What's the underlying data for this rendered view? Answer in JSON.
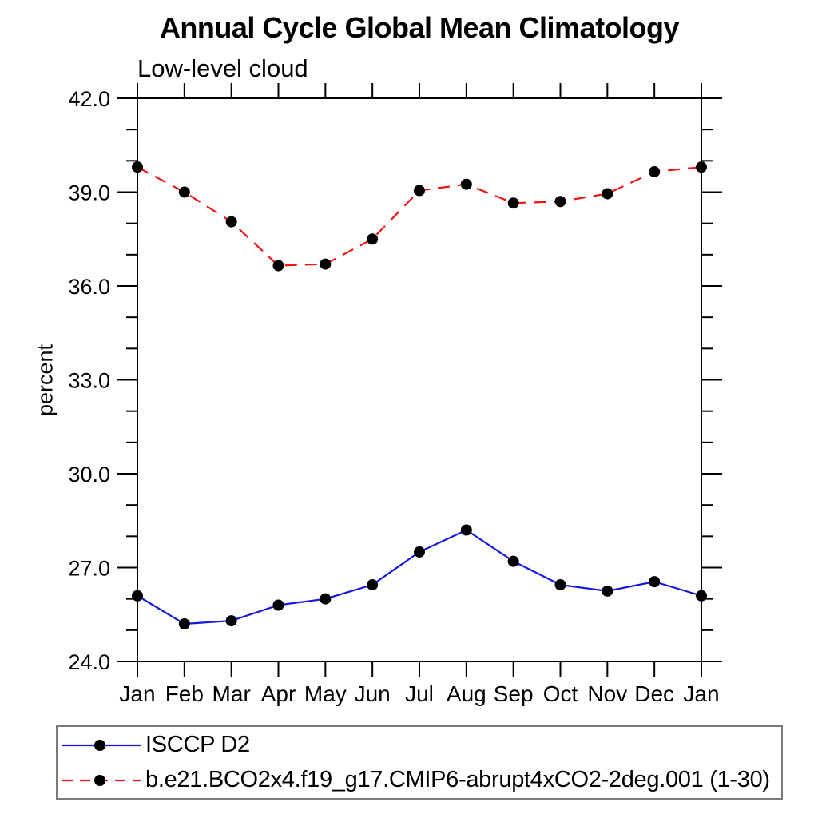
{
  "header": {
    "title": "Annual Cycle Global Mean Climatology",
    "subtitle": "Low-level cloud"
  },
  "colors": {
    "axis": "#000000",
    "marker": "#000000",
    "series_blue": "#1616dd",
    "series_red": "#f21414",
    "legend_border": "#7a7a7a",
    "background": "#ffffff"
  },
  "chart_data": {
    "type": "line",
    "title": "Annual Cycle Global Mean Climatology",
    "subtitle": "Low-level cloud",
    "xlabel": "",
    "ylabel": "percent",
    "categories": [
      "Jan",
      "Feb",
      "Mar",
      "Apr",
      "May",
      "Jun",
      "Jul",
      "Aug",
      "Sep",
      "Oct",
      "Nov",
      "Dec",
      "Jan"
    ],
    "ylim": [
      24.0,
      42.0
    ],
    "ytick_major_step": 3.0,
    "ytick_minor_step": 1.0,
    "ytick_labels": [
      "24.0",
      "27.0",
      "30.0",
      "33.0",
      "36.0",
      "39.0",
      "42.0"
    ],
    "grid": false,
    "legend_position": "bottom-left",
    "marker": {
      "shape": "circle",
      "color": "#000000",
      "radius": 7
    },
    "series": [
      {
        "name": "ISCCP D2",
        "color": "#1616dd",
        "line_style": "solid",
        "values": [
          26.1,
          25.2,
          25.3,
          25.8,
          26.0,
          26.45,
          27.5,
          28.2,
          27.2,
          26.45,
          26.25,
          26.55,
          26.1
        ]
      },
      {
        "name": "b.e21.BCO2x4.f19_g17.CMIP6-abrupt4xCO2-2deg.001 (1-30)",
        "color": "#f21414",
        "line_style": "dashed",
        "values": [
          39.8,
          39.0,
          38.05,
          36.65,
          36.7,
          37.5,
          39.05,
          39.25,
          38.65,
          38.7,
          38.95,
          39.65,
          39.8
        ]
      }
    ]
  }
}
